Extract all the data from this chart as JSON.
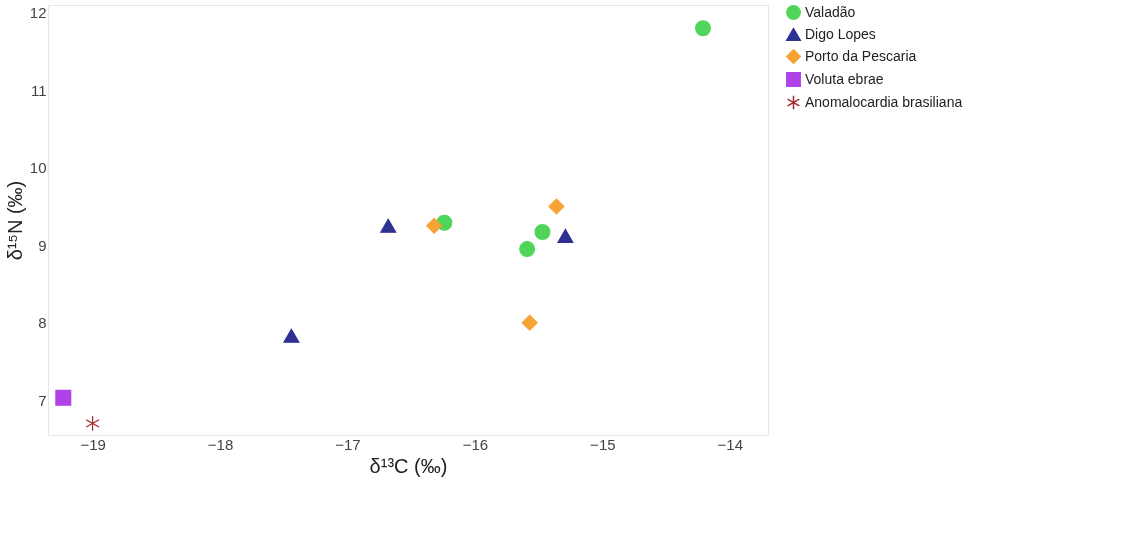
{
  "chart_data": {
    "type": "scatter",
    "xlabel": "δ¹³C (‰)",
    "ylabel": "δ¹⁵N (‰)",
    "xlim": [
      -19.35,
      -13.7
    ],
    "ylim": [
      6.55,
      12.1
    ],
    "xticks": [
      -19,
      -18,
      -17,
      -16,
      -15,
      -14
    ],
    "yticks": [
      7,
      8,
      9,
      10,
      11,
      12
    ],
    "grid": false,
    "legend": "right",
    "series": [
      {
        "name": "Valadão",
        "color": "#4fd65a",
        "marker": "circle",
        "x": [
          -14.21,
          -16.24,
          -15.47,
          -15.59
        ],
        "values": [
          11.8,
          9.29,
          9.17,
          8.95
        ]
      },
      {
        "name": "Digo Lopes",
        "color": "#2e3192",
        "marker": "triangle",
        "x": [
          -17.44,
          -16.68,
          -15.29
        ],
        "values": [
          7.83,
          9.25,
          9.12
        ]
      },
      {
        "name": "Porto da Pescaria",
        "color": "#f7a234",
        "marker": "diamond",
        "x": [
          -16.32,
          -15.36,
          -15.57
        ],
        "values": [
          9.25,
          9.5,
          8.0
        ]
      },
      {
        "name": "Voluta ebrae",
        "color": "#b043e8",
        "marker": "square",
        "x": [
          -19.23
        ],
        "values": [
          7.03
        ]
      },
      {
        "name": "Anomalocardia brasiliana",
        "color": "#a52a2a",
        "marker": "cross",
        "x": [
          -19.0
        ],
        "values": [
          6.7
        ]
      }
    ]
  }
}
